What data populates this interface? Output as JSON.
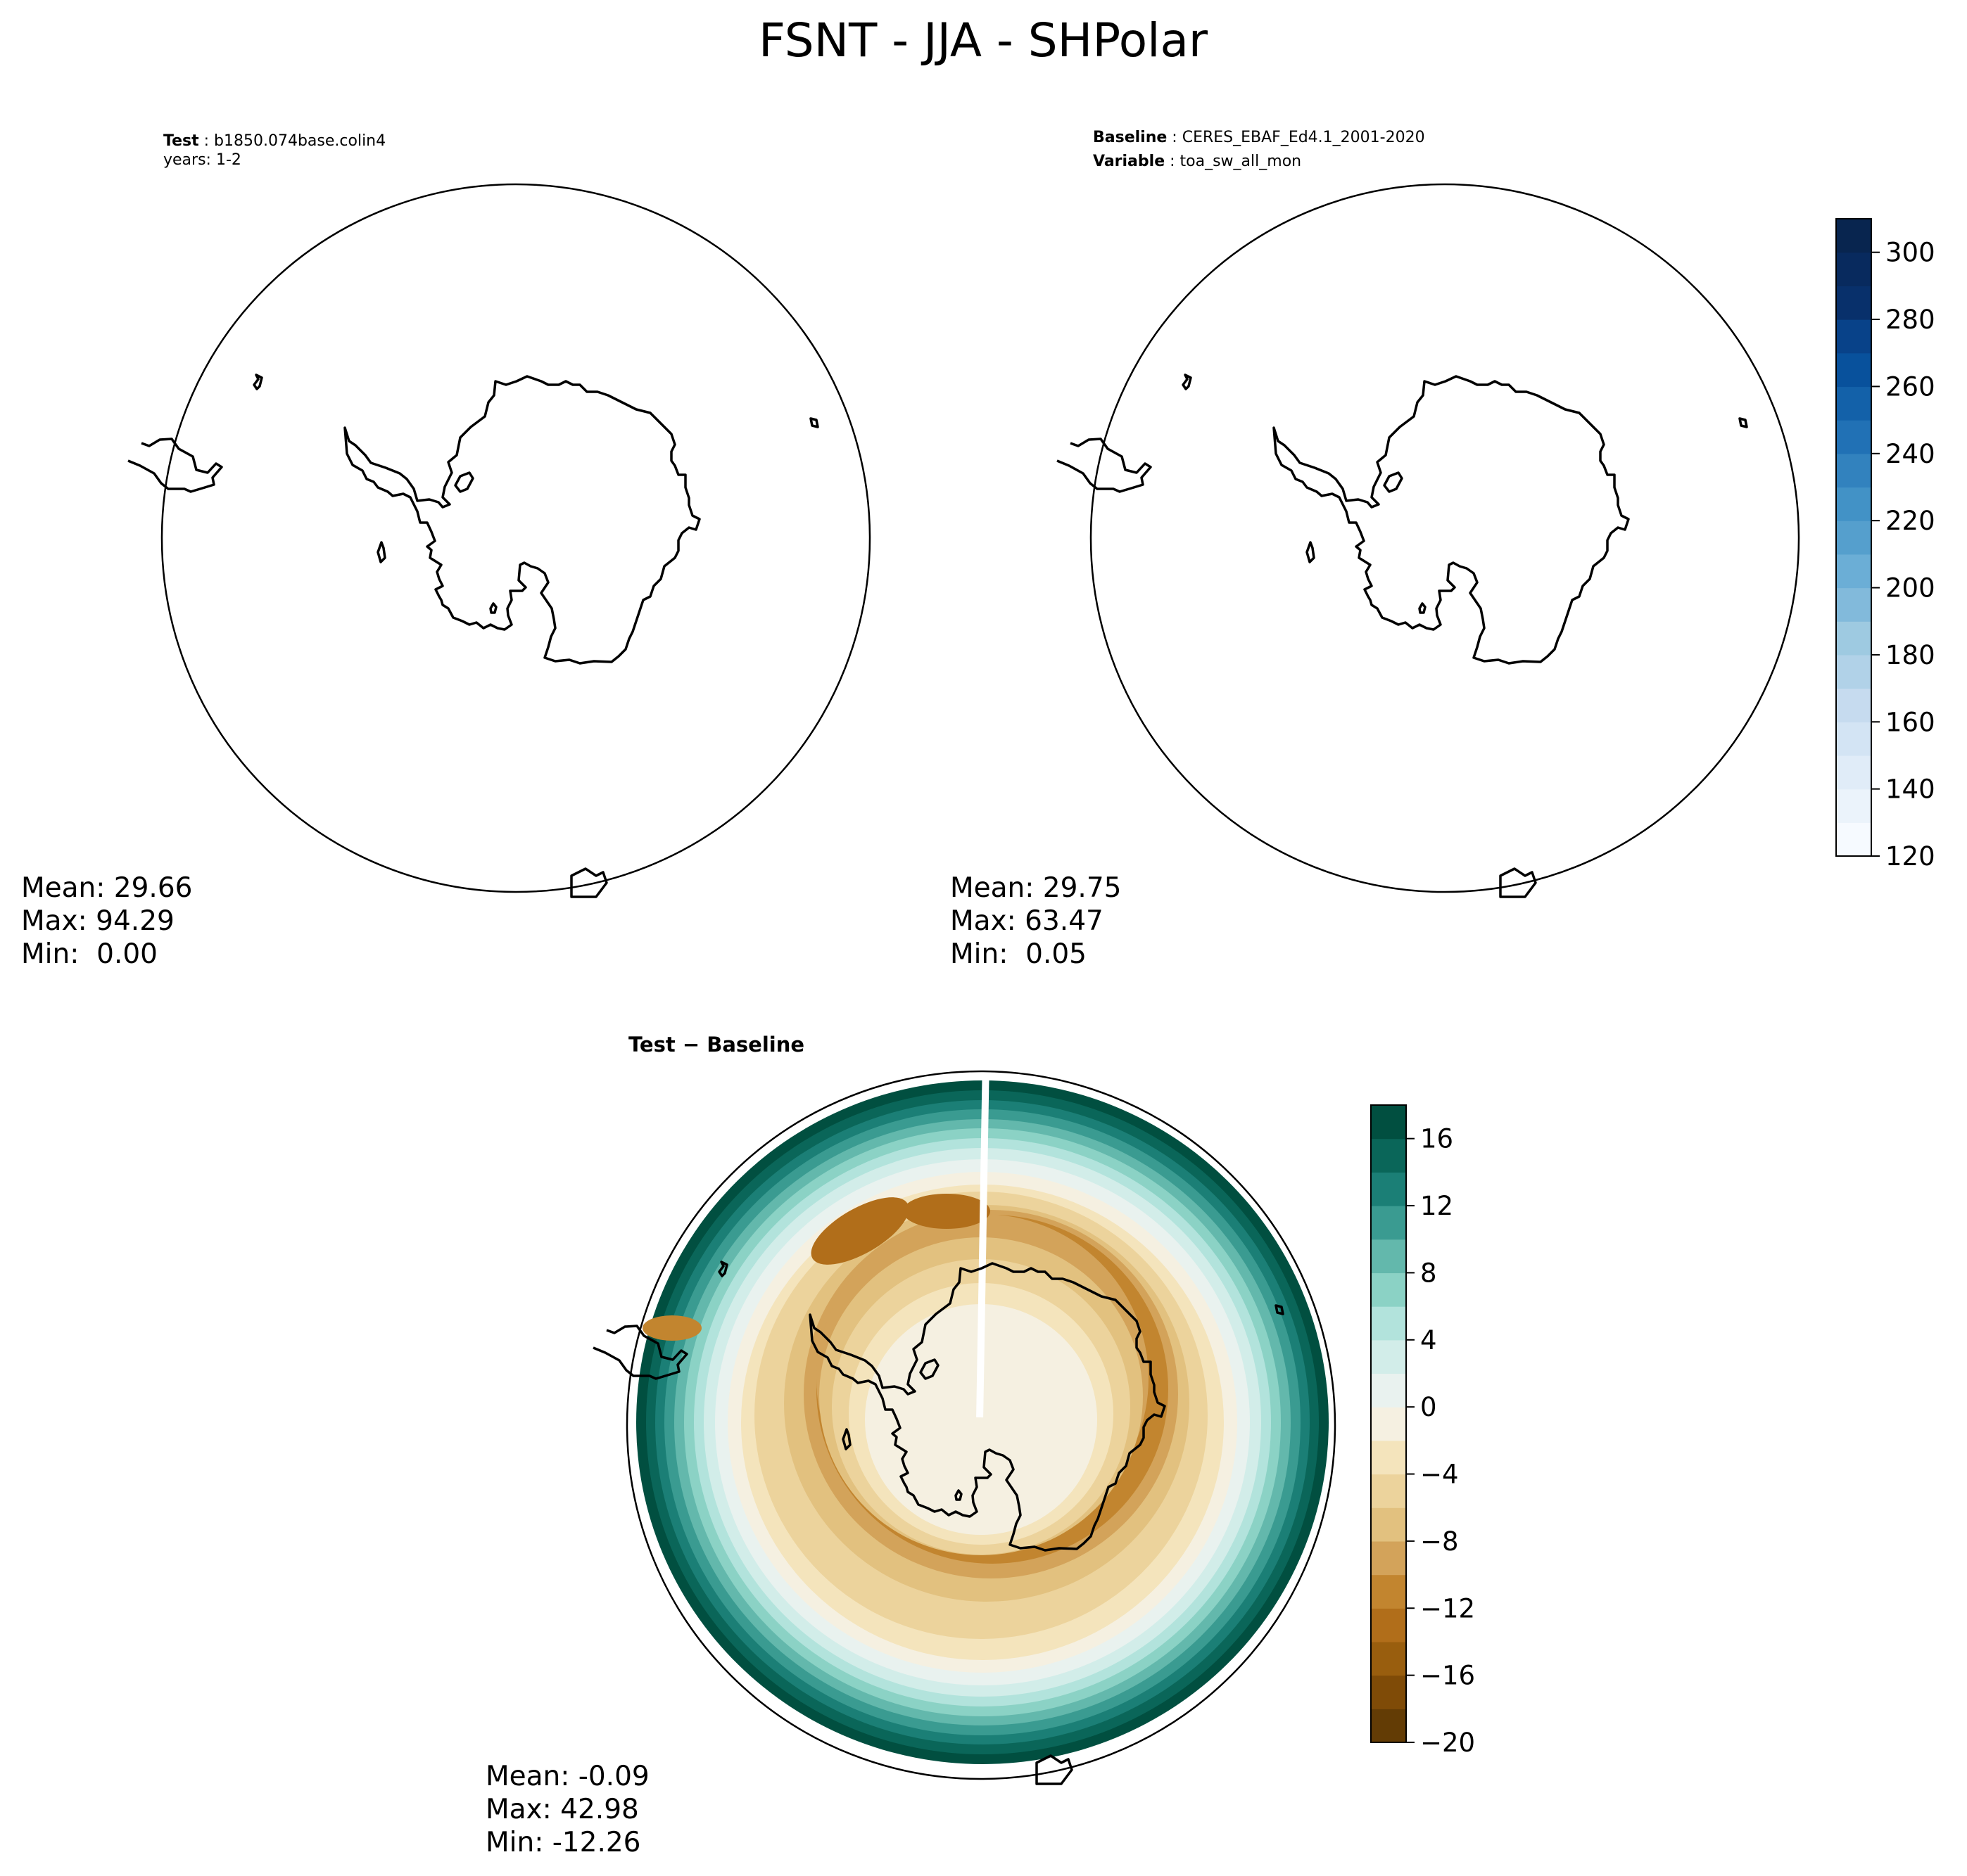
{
  "figure": {
    "title": "FSNT - JJA - SHPolar"
  },
  "chart_data": [
    {
      "type": "heatmap",
      "panel": "test",
      "projection": "south-polar-stereographic",
      "field": "empty (no filled contours shown)",
      "header": {
        "test_label": "Test",
        "test_value": "b1850.074base.colin4",
        "years_line": "years: 1-2"
      },
      "stats": {
        "mean": "Mean: 29.66",
        "max": "Max: 94.29",
        "min": "Min:  0.00"
      }
    },
    {
      "type": "heatmap",
      "panel": "baseline",
      "projection": "south-polar-stereographic",
      "field": "empty (no filled contours shown)",
      "header": {
        "baseline_label": "Baseline",
        "baseline_value": "CERES_EBAF_Ed4.1_2001-2020",
        "variable_label": "Variable",
        "variable_value": "toa_sw_all_mon"
      },
      "stats": {
        "mean": "Mean: 29.75",
        "max": "Max: 63.47",
        "min": "Min:  0.05"
      },
      "colorbar": {
        "colormap": "Blues",
        "range": [
          120,
          310
        ],
        "levels": 19,
        "ticks": [
          "120",
          "140",
          "160",
          "180",
          "200",
          "220",
          "240",
          "260",
          "280",
          "300"
        ],
        "colors": [
          "#f6faff",
          "#ebf3fb",
          "#e0ecf8",
          "#d3e4f4",
          "#c6dbef",
          "#b1d2e8",
          "#9ecae1",
          "#82badb",
          "#6baed6",
          "#559fcd",
          "#4292c6",
          "#3282be",
          "#2171b5",
          "#1361a9",
          "#08519c",
          "#084289",
          "#08306b",
          "#082a5e",
          "#08254f"
        ]
      }
    },
    {
      "type": "heatmap",
      "panel": "difference",
      "projection": "south-polar-stereographic",
      "title": "Test − Baseline",
      "field": "zonal rings: near 0 over Antarctica, negative band (-10 to -14) around 60-65S, near 0 around 55S, positive (+10 to +18) at the outer edge ~50S",
      "stats": {
        "mean": "Mean: -0.09",
        "max": "Max: 42.98",
        "min": "Min: -12.26"
      },
      "colorbar": {
        "colormap": "BrBG",
        "range": [
          -20,
          18
        ],
        "levels": 19,
        "ticks": [
          "−20",
          "−16",
          "−12",
          "−8",
          "−4",
          "0",
          "4",
          "8",
          "12",
          "16"
        ],
        "colors": [
          "#633c05",
          "#7f4b07",
          "#995e0e",
          "#b16e1a",
          "#c2852f",
          "#d3a35a",
          "#e2c17f",
          "#ecd39c",
          "#f4e4bc",
          "#f5f0e1",
          "#e9f2ef",
          "#d2ede9",
          "#b2e3dc",
          "#8bd2c5",
          "#63b8ac",
          "#3a9b91",
          "#1b7f76",
          "#0a6659",
          "#014f40"
        ]
      }
    }
  ]
}
